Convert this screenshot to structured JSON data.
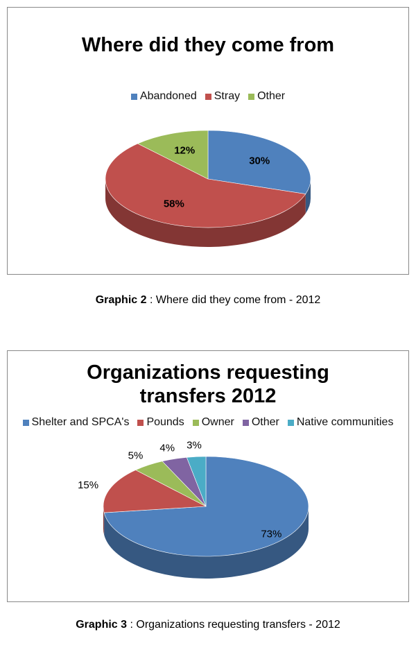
{
  "chart_data": [
    {
      "type": "pie",
      "title": "Where did they come from",
      "categories": [
        "Abandoned",
        "Stray",
        "Other"
      ],
      "values": [
        30,
        58,
        12
      ],
      "value_labels": [
        "30%",
        "58%",
        "12%"
      ],
      "colors": [
        "#4f81bd",
        "#c0504d",
        "#9bbb59"
      ],
      "legend": "top"
    },
    {
      "type": "pie",
      "title": "Organizations requesting transfers 2012",
      "categories": [
        "Shelter and SPCA's",
        "Pounds",
        "Owner",
        "Other",
        "Native communities"
      ],
      "values": [
        73,
        15,
        5,
        4,
        3
      ],
      "value_labels": [
        "73%",
        "15%",
        "5%",
        "4%",
        "3%"
      ],
      "colors": [
        "#4f81bd",
        "#c0504d",
        "#9bbb59",
        "#8064a2",
        "#4bacc6"
      ],
      "legend": "top"
    }
  ],
  "captions": [
    {
      "label": "Graphic 2",
      "text": ": Where did they come from - 2012"
    },
    {
      "label": "Graphic 3",
      "text": ": Organizations requesting transfers - 2012"
    }
  ]
}
